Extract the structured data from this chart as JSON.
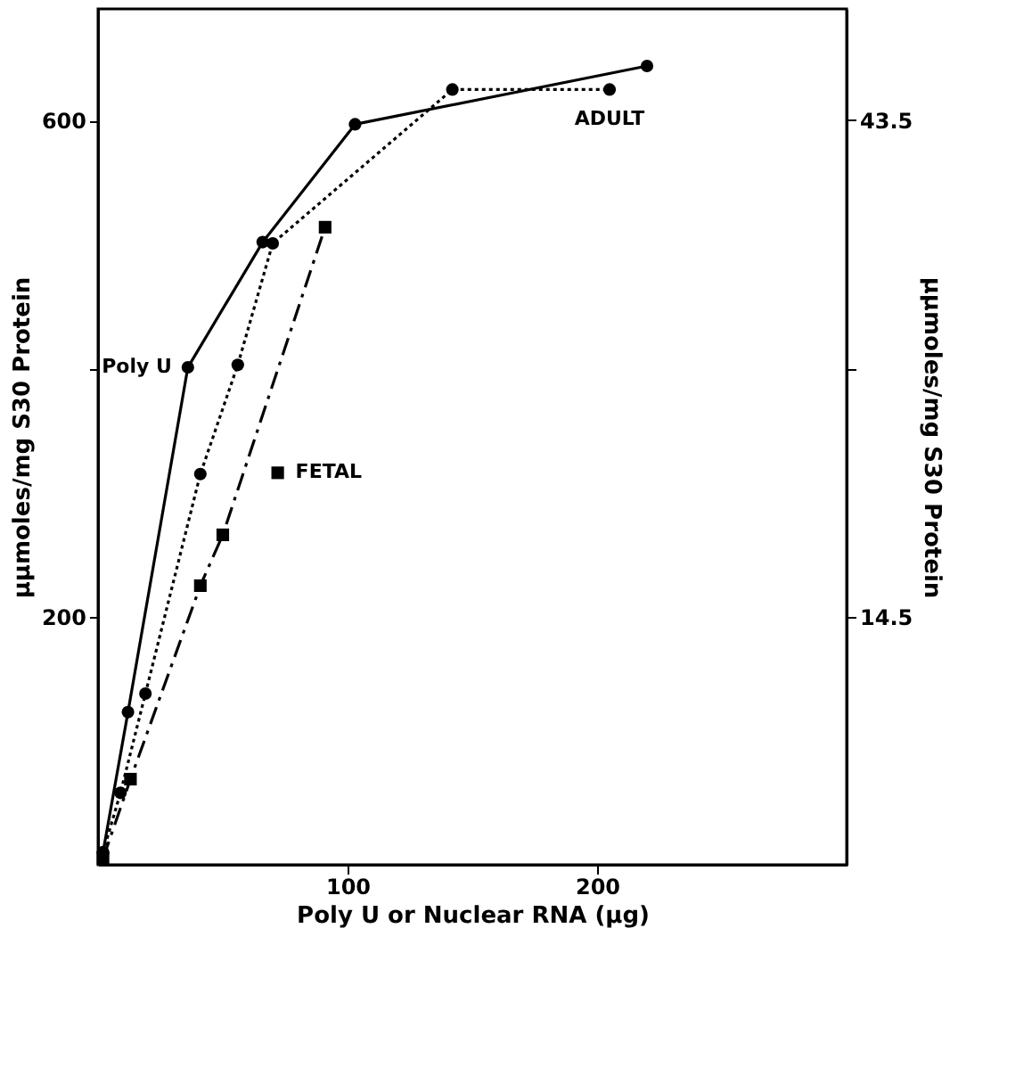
{
  "chart_data": {
    "type": "line",
    "xlabel": "Poly U or Nuclear RNA (μg)",
    "ylabel": "μμmoles/mg S30 Protein",
    "y2label": "μμmoles/mg S30 Protein",
    "xlim": [
      0,
      300
    ],
    "xticks": [
      100,
      200
    ],
    "ylim": [
      0,
      690
    ],
    "yticks": [
      200,
      {
        "value": 400,
        "label": null
      },
      600
    ],
    "y2lim": [
      0,
      50
    ],
    "y2ticks": [
      14.5,
      {
        "value": 29,
        "label": null
      },
      43.5
    ],
    "grid": false,
    "series": [
      {
        "color": "#000000",
        "marker": "circle",
        "line_style": "solid",
        "x": [
          2,
          12,
          36,
          66,
          103,
          220
        ],
        "values": [
          10,
          123,
          401,
          502,
          597,
          644
        ]
      },
      {
        "color": "#000000",
        "marker": "circle",
        "line_style": "dotted",
        "x": [
          2,
          9,
          19,
          41,
          56,
          70,
          142,
          205
        ],
        "values": [
          10,
          58,
          138,
          315,
          403,
          501,
          625,
          625
        ]
      },
      {
        "color": "#000000",
        "marker": "square",
        "line_style": "dashed",
        "x": [
          2,
          13,
          41,
          50,
          91
        ],
        "values": [
          5,
          69,
          225,
          266,
          514
        ]
      },
      {
        "type": "scatter",
        "color": "#000000",
        "marker": "square",
        "x": [
          72
        ],
        "values": [
          316
        ]
      }
    ],
    "annotations": [
      {
        "text": "Poly U",
        "x": 36,
        "y": 401
      },
      {
        "text": "ADULT",
        "x": 205,
        "y": 625
      },
      {
        "text": "FETAL",
        "x": 72,
        "y": 316
      }
    ]
  }
}
